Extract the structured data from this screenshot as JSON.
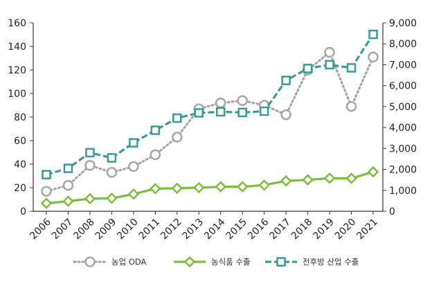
{
  "chart_data": {
    "type": "line",
    "title": "",
    "xlabel": "",
    "ylabel": "",
    "ylim": [
      0,
      160
    ],
    "y2lim": [
      0,
      9000
    ],
    "grid": false,
    "legend_position": "bottom",
    "categories": [
      "2006",
      "2007",
      "2008",
      "2009",
      "2010",
      "2011",
      "2012",
      "2013",
      "2014",
      "2015",
      "2016",
      "2017",
      "2018",
      "2019",
      "2020",
      "2021"
    ],
    "left_ticks": [
      "0",
      "20",
      "40",
      "60",
      "80",
      "100",
      "120",
      "140",
      "160"
    ],
    "left_tick_values": [
      0,
      20,
      40,
      60,
      80,
      100,
      120,
      140,
      160
    ],
    "right_ticks": [
      "0",
      "1,000",
      "2,000",
      "3,000",
      "4,000",
      "5,000",
      "6,000",
      "7,000",
      "8,000",
      "9,000"
    ],
    "right_tick_values": [
      0,
      1000,
      2000,
      3000,
      4000,
      5000,
      6000,
      7000,
      8000,
      9000
    ],
    "series": [
      {
        "name": "농업 ODA",
        "axis": "left",
        "color": "#a6a6a6",
        "marker": "circle",
        "line_style": "dotted",
        "values": [
          17,
          22,
          39,
          33,
          38,
          48,
          63,
          87,
          92,
          94,
          90,
          82,
          120,
          135,
          89,
          131
        ]
      },
      {
        "name": "농식품 수출",
        "axis": "right",
        "color": "#7cbd3c",
        "marker": "diamond",
        "line_style": "solid",
        "values": [
          380,
          480,
          600,
          620,
          820,
          1080,
          1100,
          1130,
          1170,
          1170,
          1250,
          1450,
          1500,
          1580,
          1570,
          1880
        ]
      },
      {
        "name": "전후방 산업 수출",
        "axis": "right",
        "color": "#3a9a96",
        "marker": "square",
        "line_style": "dashed",
        "values": [
          1750,
          2050,
          2800,
          2550,
          3270,
          3870,
          4450,
          4700,
          4750,
          4720,
          4780,
          6250,
          6820,
          7000,
          6850,
          8450
        ]
      }
    ]
  }
}
